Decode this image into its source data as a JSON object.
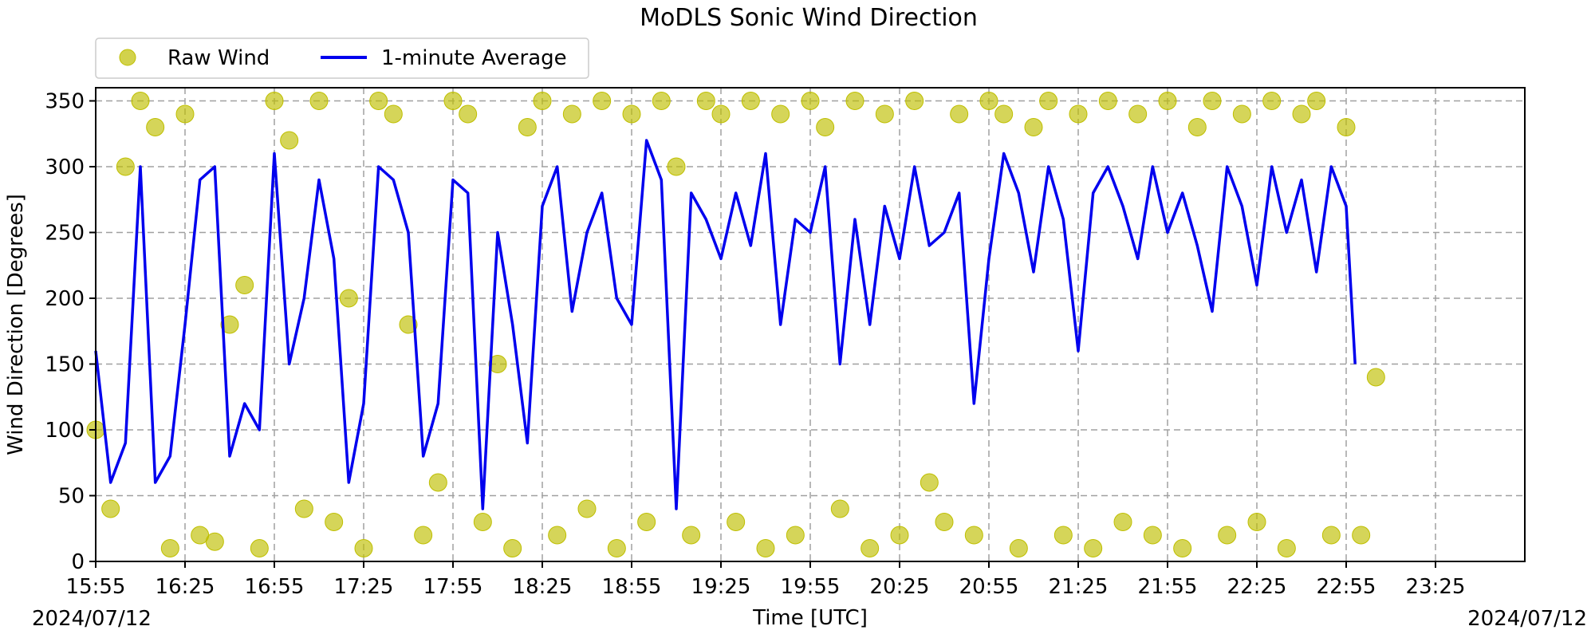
{
  "chart_data": {
    "type": "scatter",
    "title": "MoDLS Sonic Wind Direction",
    "xlabel": "Time [UTC]",
    "ylabel": "Wind Direction [Degrees]",
    "x_unit": "time (HH:MM UTC)",
    "xlim": [
      "15:55",
      "23:55"
    ],
    "ylim": [
      0,
      360
    ],
    "x_ticks": [
      "15:55",
      "16:25",
      "16:55",
      "17:25",
      "17:55",
      "18:25",
      "18:55",
      "19:25",
      "19:55",
      "20:25",
      "20:55",
      "21:25",
      "21:55",
      "22:25",
      "22:55",
      "23:25"
    ],
    "y_ticks": [
      0,
      50,
      100,
      150,
      200,
      250,
      300,
      350
    ],
    "date_left": "2024/07/12",
    "date_right": "2024/07/12",
    "grid": true,
    "legend_position": "above-left",
    "series": [
      {
        "name": "Raw Wind",
        "kind": "scatter",
        "color": "#bfbf00",
        "x": [
          "15:55",
          "16:00",
          "16:05",
          "16:10",
          "16:15",
          "16:20",
          "16:25",
          "16:30",
          "16:35",
          "16:40",
          "16:45",
          "16:50",
          "16:55",
          "17:00",
          "17:05",
          "17:10",
          "17:15",
          "17:20",
          "17:25",
          "17:30",
          "17:35",
          "17:40",
          "17:45",
          "17:50",
          "17:55",
          "18:00",
          "18:05",
          "18:10",
          "18:15",
          "18:20",
          "18:25",
          "18:30",
          "18:35",
          "18:40",
          "18:45",
          "18:50",
          "18:55",
          "19:00",
          "19:05",
          "19:10",
          "19:15",
          "19:20",
          "19:25",
          "19:30",
          "19:35",
          "19:40",
          "19:45",
          "19:50",
          "19:55",
          "20:00",
          "20:05",
          "20:10",
          "20:15",
          "20:20",
          "20:25",
          "20:30",
          "20:35",
          "20:40",
          "20:45",
          "20:50",
          "20:55",
          "21:00",
          "21:05",
          "21:10",
          "21:15",
          "21:20",
          "21:25",
          "21:30",
          "21:35",
          "21:40",
          "21:45",
          "21:50",
          "21:55",
          "22:00",
          "22:05",
          "22:10",
          "22:15",
          "22:20",
          "22:25",
          "22:30",
          "22:35",
          "22:40",
          "22:45",
          "22:50",
          "22:55",
          "23:00",
          "23:05"
        ],
        "y": [
          100,
          40,
          300,
          350,
          330,
          10,
          340,
          20,
          15,
          180,
          210,
          10,
          350,
          320,
          40,
          350,
          30,
          200,
          10,
          350,
          340,
          180,
          20,
          60,
          350,
          340,
          30,
          150,
          10,
          330,
          350,
          20,
          340,
          40,
          350,
          10,
          340,
          30,
          350,
          300,
          20,
          350,
          340,
          30,
          350,
          10,
          340,
          20,
          350,
          330,
          40,
          350,
          10,
          340,
          20,
          350,
          60,
          30,
          340,
          20,
          350,
          340,
          10,
          330,
          350,
          20,
          340,
          10,
          350,
          30,
          340,
          20,
          350,
          10,
          330,
          350,
          20,
          340,
          30,
          350,
          10,
          340,
          350,
          20,
          330,
          20,
          140
        ]
      },
      {
        "name": "1-minute Average",
        "kind": "line",
        "color": "#0000ee",
        "x": [
          "15:55",
          "16:00",
          "16:05",
          "16:10",
          "16:15",
          "16:20",
          "16:25",
          "16:30",
          "16:35",
          "16:40",
          "16:45",
          "16:50",
          "16:55",
          "17:00",
          "17:05",
          "17:10",
          "17:15",
          "17:20",
          "17:25",
          "17:30",
          "17:35",
          "17:40",
          "17:45",
          "17:50",
          "17:55",
          "18:00",
          "18:05",
          "18:10",
          "18:15",
          "18:20",
          "18:25",
          "18:30",
          "18:35",
          "18:40",
          "18:45",
          "18:50",
          "18:55",
          "19:00",
          "19:05",
          "19:10",
          "19:15",
          "19:20",
          "19:25",
          "19:30",
          "19:35",
          "19:40",
          "19:45",
          "19:50",
          "19:55",
          "20:00",
          "20:05",
          "20:10",
          "20:15",
          "20:20",
          "20:25",
          "20:30",
          "20:35",
          "20:40",
          "20:45",
          "20:50",
          "20:55",
          "21:00",
          "21:05",
          "21:10",
          "21:15",
          "21:20",
          "21:25",
          "21:30",
          "21:35",
          "21:40",
          "21:45",
          "21:50",
          "21:55",
          "22:00",
          "22:05",
          "22:10",
          "22:15",
          "22:20",
          "22:25",
          "22:30",
          "22:35",
          "22:40",
          "22:45",
          "22:50",
          "22:55",
          "22:58"
        ],
        "y": [
          160,
          60,
          90,
          300,
          60,
          80,
          180,
          290,
          300,
          80,
          120,
          100,
          310,
          150,
          200,
          290,
          230,
          60,
          120,
          300,
          290,
          250,
          80,
          120,
          290,
          280,
          40,
          250,
          180,
          90,
          270,
          300,
          190,
          250,
          280,
          200,
          180,
          320,
          290,
          40,
          280,
          260,
          230,
          280,
          240,
          310,
          180,
          260,
          250,
          300,
          150,
          260,
          180,
          270,
          230,
          300,
          240,
          250,
          280,
          120,
          230,
          310,
          280,
          220,
          300,
          260,
          160,
          280,
          300,
          270,
          230,
          300,
          250,
          280,
          240,
          190,
          300,
          270,
          210,
          300,
          250,
          290,
          220,
          300,
          270,
          150
        ]
      }
    ]
  }
}
